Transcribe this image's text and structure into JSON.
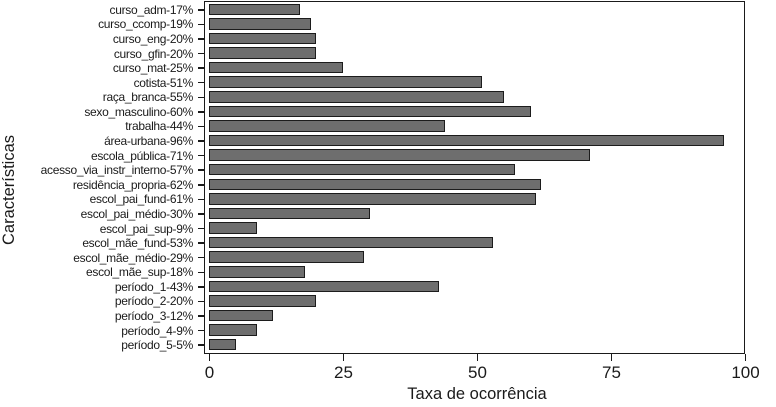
{
  "figure": {
    "background": "#ffffff"
  },
  "chart_data": {
    "type": "bar",
    "orientation": "horizontal",
    "title": "",
    "xlabel": "Taxa de ocorrência",
    "ylabel": "Características",
    "xlim": [
      0,
      100
    ],
    "x_tick_labels": [
      "0",
      "25",
      "50",
      "75",
      "100"
    ],
    "x_tick_values": [
      0,
      25,
      50,
      75,
      100
    ],
    "grid": false,
    "legend": "none",
    "bar_fill": "#6e6e6e",
    "bar_border": "#1c1c1c",
    "axis_color": "#1a1a1a",
    "text_color": "#1a1a1a",
    "categories": [
      "curso_adm-17%",
      "curso_ccomp-19%",
      "curso_eng-20%",
      "curso_gfin-20%",
      "curso_mat-25%",
      "cotista-51%",
      "raça_branca-55%",
      "sexo_masculino-60%",
      "trabalha-44%",
      "área-urbana-96%",
      "escola_pública-71%",
      "acesso_via_instr_interno-57%",
      "residência_propria-62%",
      "escol_pai_fund-61%",
      "escol_pai_médio-30%",
      "escol_pai_sup-9%",
      "escol_mãe_fund-53%",
      "escol_mãe_médio-29%",
      "escol_mãe_sup-18%",
      "período_1-43%",
      "período_2-20%",
      "período_3-12%",
      "período_4-9%",
      "período_5-5%"
    ],
    "values": [
      17,
      19,
      20,
      20,
      25,
      51,
      55,
      60,
      44,
      96,
      71,
      57,
      62,
      61,
      30,
      9,
      53,
      29,
      18,
      43,
      20,
      12,
      9,
      5
    ]
  }
}
